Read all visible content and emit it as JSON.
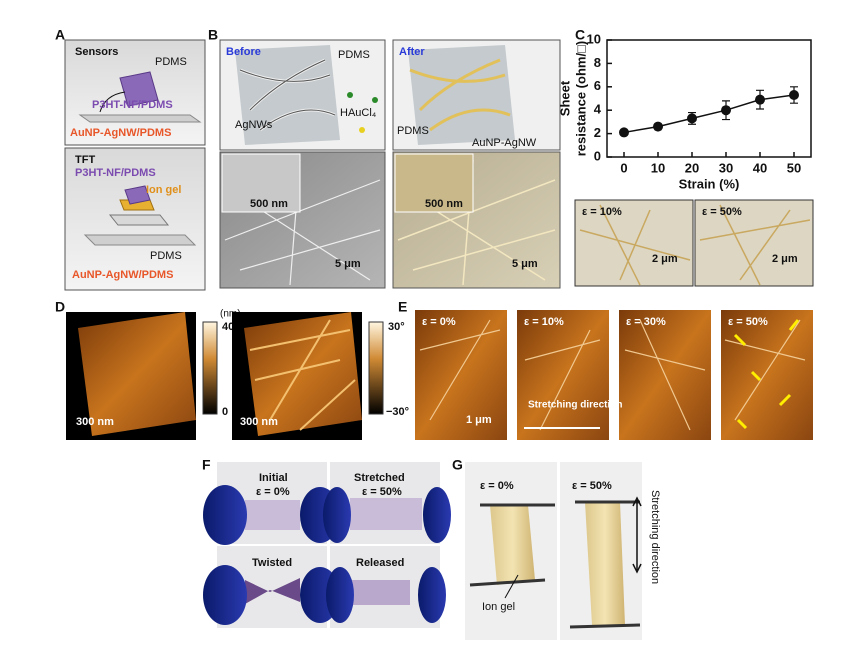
{
  "panel_a": {
    "label": "A",
    "sensors_title": "Sensors",
    "sensors_pdms": "PDMS",
    "sensors_channel": "P3HT-NF/PDMS",
    "sensors_electrode": "AuNP-AgNW/PDMS",
    "tft_title": "TFT",
    "tft_channel": "P3HT-NF/PDMS",
    "tft_dielectric": "Ion gel",
    "tft_pdms": "PDMS",
    "tft_electrode": "AuNP-AgNW/PDMS"
  },
  "panel_b": {
    "label": "B",
    "before": {
      "title": "Before",
      "pdms": "PDMS",
      "wires": "AgNWs",
      "precursor": "HAuCl₄",
      "inset_scale": "500 nm",
      "scale": "5 μm"
    },
    "after": {
      "title": "After",
      "pdms_left": "PDMS",
      "wires": "AuNP-AgNW",
      "inset_scale": "500 nm",
      "scale": "5 μm"
    }
  },
  "chart_data": {
    "type": "line",
    "label": "C",
    "y_label_lines": [
      "Sheet",
      "resistance (ohm/□)"
    ],
    "x_label": "Strain (%)",
    "x": [
      0,
      10,
      20,
      30,
      40,
      50
    ],
    "values": [
      2.1,
      2.6,
      3.3,
      4.0,
      4.9,
      5.3
    ],
    "errors": [
      0.2,
      0.2,
      0.5,
      0.8,
      0.8,
      0.7
    ],
    "color": "#111111",
    "xlim": [
      -5,
      55
    ],
    "ylim": [
      0,
      10
    ],
    "xticks": [
      0,
      10,
      20,
      30,
      40,
      50
    ],
    "yticks": [
      0,
      2,
      4,
      6,
      8,
      10
    ]
  },
  "panel_c_insets": [
    {
      "strain": "ε = 10%",
      "scale": "2 μm"
    },
    {
      "strain": "ε = 50%",
      "scale": "2 μm"
    }
  ],
  "panel_d": {
    "label": "D",
    "height_unit": "(nm)",
    "height_max": "40",
    "height_min": "0",
    "phase_max": "30°",
    "phase_min": "−30°",
    "scale_left": "300 nm",
    "scale_right": "300 nm"
  },
  "panel_e": {
    "label": "E",
    "strains": [
      "ε = 0%",
      "ε = 10%",
      "ε = 30%",
      "ε = 50%"
    ],
    "scale": "1 μm",
    "direction": "Stretching direction"
  },
  "panel_f": {
    "label": "F",
    "initial": "Initial",
    "initial_strain": "ε = 0%",
    "stretched": "Stretched",
    "stretched_strain": "ε = 50%",
    "twisted": "Twisted",
    "released": "Released"
  },
  "panel_g": {
    "label": "G",
    "strain_left": "ε = 0%",
    "strain_right": "ε = 50%",
    "ion_gel": "Ion gel",
    "direction": "Stretching direction"
  }
}
